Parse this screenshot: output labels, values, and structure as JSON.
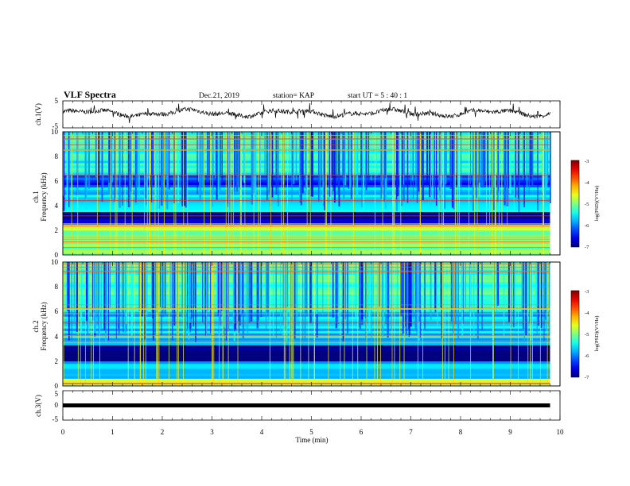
{
  "header": {
    "title": "VLF Spectra",
    "date": "Dec.21, 2019",
    "station": "station= KAP",
    "start": "start  UT =   5 : 40 : 1"
  },
  "chart_data": [
    {
      "type": "line",
      "ylabel": "ch.1(V)",
      "xlim": [
        0,
        10
      ],
      "ylim": [
        -5,
        5
      ],
      "y_ticks": [
        "5",
        "-5"
      ],
      "description_values": {
        "baseline": 0.5,
        "amplitude_range": [
          -2,
          2.5
        ]
      }
    },
    {
      "type": "heatmap",
      "ylabel_line1": "ch.1",
      "ylabel_line2": "Frequency  (kHz)",
      "xlim": [
        0,
        10
      ],
      "ylim": [
        0,
        10
      ],
      "y_ticks": [
        "0",
        "2",
        "4",
        "6",
        "8",
        "10"
      ],
      "data_end_min": 9.8,
      "bands_khz": [
        {
          "from": 0,
          "to": 0.5,
          "level": -4.8
        },
        {
          "from": 0.5,
          "to": 2.0,
          "level": -5.0
        },
        {
          "from": 2.0,
          "to": 2.5,
          "level": -4.6
        },
        {
          "from": 2.5,
          "to": 3.5,
          "level": -6.8
        },
        {
          "from": 3.5,
          "to": 5.5,
          "level": -5.6
        },
        {
          "from": 5.5,
          "to": 6.5,
          "level": -6.3
        },
        {
          "from": 6.5,
          "to": 10,
          "level": -5.4
        }
      ],
      "colorbar": {
        "label": "log(PSD)(V²/Hz)",
        "ticks": [
          "-3",
          "-4",
          "-5",
          "-6",
          "-7"
        ],
        "range": [
          -7,
          -3
        ]
      }
    },
    {
      "type": "heatmap",
      "ylabel_line1": "ch.2",
      "ylabel_line2": "Frequency  (kHz)",
      "xlim": [
        0,
        10
      ],
      "ylim": [
        0,
        10
      ],
      "y_ticks": [
        "0",
        "2",
        "4",
        "6",
        "8",
        "10"
      ],
      "data_end_min": 9.8,
      "bands_khz": [
        {
          "from": 0,
          "to": 0.6,
          "level": -4.9
        },
        {
          "from": 0.6,
          "to": 2.0,
          "level": -5.7
        },
        {
          "from": 2.0,
          "to": 3.3,
          "level": -6.9
        },
        {
          "from": 3.3,
          "to": 6.0,
          "level": -5.7
        },
        {
          "from": 6.0,
          "to": 10,
          "level": -5.3
        }
      ],
      "colorbar": {
        "label": "log(PSD)(V²/Hz)",
        "ticks": [
          "-3",
          "-4",
          "-5",
          "-6",
          "-7"
        ],
        "range": [
          -7,
          -3
        ]
      }
    },
    {
      "type": "line",
      "ylabel": "ch.3(V)",
      "xlabel": "Time  (min)",
      "xlim": [
        0,
        10
      ],
      "ylim": [
        -5,
        5
      ],
      "y_ticks": [
        "5",
        "0",
        "-5"
      ],
      "x_ticks": [
        "0",
        "1",
        "2",
        "3",
        "4",
        "5",
        "6",
        "7",
        "8",
        "9",
        "10"
      ],
      "constant_value": 0,
      "data_end_min": 9.8
    }
  ],
  "colors": {
    "spectrogram_low": "#000080",
    "spectrogram_mid": "#00ff00",
    "spectrogram_high": "#ff0000"
  }
}
